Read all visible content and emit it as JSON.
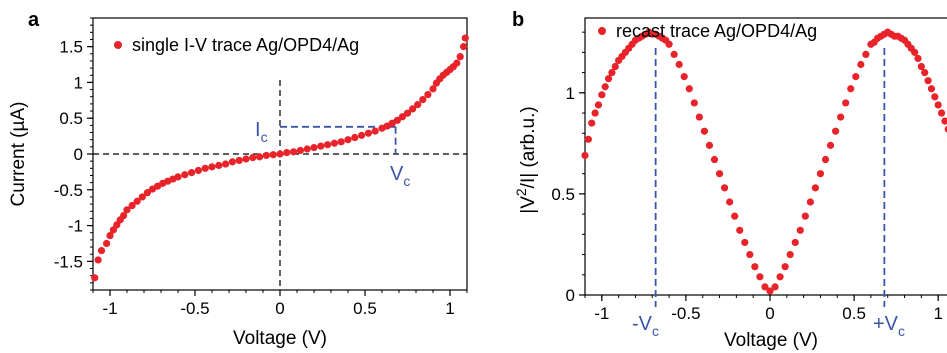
{
  "colors": {
    "point": "#e8232a",
    "annotation": "#3a55a8",
    "axis": "#000000",
    "zero_line": "#000000"
  },
  "panel_a": {
    "letter": "a",
    "annotations": {
      "ic_main": "I",
      "ic_sub": "c",
      "vc_main": "V",
      "vc_sub": "c"
    }
  },
  "panel_b": {
    "letter": "b",
    "annotations": {
      "neg_vc_main": "-V",
      "neg_vc_sub": "c",
      "pos_vc_main": "+V",
      "pos_vc_sub": "c"
    }
  },
  "chart_data": [
    {
      "type": "scatter",
      "panel": "a",
      "xlabel": "Voltage (V)",
      "ylabel": "Current (µA)",
      "xlim": [
        -1.1,
        1.1
      ],
      "ylim": [
        -1.9,
        1.9
      ],
      "x_ticks": [
        -1,
        -0.5,
        0,
        0.5,
        1
      ],
      "x_tick_labels": [
        "-1",
        "-0.5",
        "0",
        "0.5",
        "1"
      ],
      "y_ticks": [
        -1.5,
        -1,
        -0.5,
        0,
        0.5,
        1,
        1.5
      ],
      "y_tick_labels": [
        "-1.5",
        "-1",
        "-0.5",
        "0",
        "0.5",
        "1",
        "1.5"
      ],
      "legend": "top-left",
      "grid": false,
      "series": [
        {
          "name": "single I-V trace Ag/OPD4/Ag",
          "x": [
            -1.09,
            -1.07,
            -1.05,
            -1.02,
            -1.0,
            -0.98,
            -0.96,
            -0.94,
            -0.92,
            -0.9,
            -0.87,
            -0.84,
            -0.81,
            -0.78,
            -0.75,
            -0.72,
            -0.69,
            -0.66,
            -0.63,
            -0.6,
            -0.56,
            -0.52,
            -0.48,
            -0.44,
            -0.4,
            -0.36,
            -0.32,
            -0.28,
            -0.24,
            -0.2,
            -0.16,
            -0.12,
            -0.08,
            -0.04,
            0.0,
            0.04,
            0.08,
            0.12,
            0.16,
            0.2,
            0.24,
            0.28,
            0.32,
            0.36,
            0.4,
            0.44,
            0.48,
            0.52,
            0.56,
            0.6,
            0.63,
            0.66,
            0.69,
            0.72,
            0.75,
            0.78,
            0.81,
            0.84,
            0.87,
            0.9,
            0.92,
            0.94,
            0.96,
            0.98,
            1.0,
            1.02,
            1.04,
            1.06,
            1.08,
            1.09
          ],
          "y": [
            -1.73,
            -1.48,
            -1.35,
            -1.25,
            -1.14,
            -1.06,
            -0.99,
            -0.92,
            -0.86,
            -0.78,
            -0.72,
            -0.66,
            -0.6,
            -0.54,
            -0.49,
            -0.45,
            -0.41,
            -0.38,
            -0.35,
            -0.32,
            -0.29,
            -0.26,
            -0.23,
            -0.2,
            -0.18,
            -0.16,
            -0.14,
            -0.11,
            -0.09,
            -0.07,
            -0.05,
            -0.04,
            -0.02,
            -0.01,
            0.0,
            0.02,
            0.03,
            0.05,
            0.07,
            0.09,
            0.11,
            0.13,
            0.15,
            0.17,
            0.2,
            0.23,
            0.26,
            0.29,
            0.32,
            0.36,
            0.39,
            0.43,
            0.47,
            0.52,
            0.57,
            0.63,
            0.69,
            0.76,
            0.83,
            0.91,
            0.99,
            1.05,
            1.1,
            1.14,
            1.18,
            1.22,
            1.27,
            1.36,
            1.5,
            1.62
          ]
        }
      ],
      "guides": {
        "vc_x": 0.68,
        "ic_y": 0.38
      }
    },
    {
      "type": "scatter",
      "panel": "b",
      "xlabel": "Voltage (V)",
      "ylabel": "|V²/I| (arb.u.)",
      "xlim": [
        -1.1,
        1.1
      ],
      "ylim": [
        0,
        1.37
      ],
      "x_ticks": [
        -1,
        -0.5,
        0,
        0.5,
        1
      ],
      "x_tick_labels": [
        "-1",
        "-0.5",
        "0",
        "0.5",
        "1"
      ],
      "y_ticks": [
        0,
        0.5,
        1
      ],
      "y_tick_labels": [
        "0",
        "0.5",
        "1"
      ],
      "legend": "top-left",
      "grid": false,
      "series": [
        {
          "name": "recast trace Ag/OPD4/Ag",
          "x": [
            -1.1,
            -1.08,
            -1.06,
            -1.04,
            -1.02,
            -1.0,
            -0.98,
            -0.96,
            -0.94,
            -0.92,
            -0.9,
            -0.88,
            -0.86,
            -0.84,
            -0.82,
            -0.8,
            -0.78,
            -0.76,
            -0.74,
            -0.72,
            -0.7,
            -0.68,
            -0.66,
            -0.64,
            -0.62,
            -0.6,
            -0.57,
            -0.54,
            -0.51,
            -0.48,
            -0.45,
            -0.42,
            -0.39,
            -0.36,
            -0.33,
            -0.3,
            -0.27,
            -0.24,
            -0.21,
            -0.18,
            -0.15,
            -0.12,
            -0.09,
            -0.06,
            -0.03,
            0.0,
            0.03,
            0.06,
            0.09,
            0.12,
            0.15,
            0.18,
            0.21,
            0.24,
            0.27,
            0.3,
            0.33,
            0.36,
            0.39,
            0.42,
            0.45,
            0.48,
            0.51,
            0.54,
            0.57,
            0.6,
            0.62,
            0.64,
            0.66,
            0.68,
            0.7,
            0.72,
            0.74,
            0.76,
            0.78,
            0.8,
            0.82,
            0.84,
            0.86,
            0.88,
            0.9,
            0.92,
            0.94,
            0.96,
            0.98,
            1.0,
            1.02,
            1.04,
            1.06,
            1.08,
            1.1
          ],
          "y": [
            0.69,
            0.77,
            0.85,
            0.9,
            0.94,
            0.99,
            1.03,
            1.07,
            1.1,
            1.13,
            1.16,
            1.18,
            1.2,
            1.22,
            1.24,
            1.26,
            1.27,
            1.28,
            1.29,
            1.3,
            1.29,
            1.29,
            1.28,
            1.27,
            1.26,
            1.24,
            1.19,
            1.14,
            1.08,
            1.02,
            0.95,
            0.88,
            0.81,
            0.74,
            0.67,
            0.6,
            0.53,
            0.46,
            0.39,
            0.32,
            0.26,
            0.2,
            0.14,
            0.09,
            0.04,
            0.02,
            0.04,
            0.09,
            0.14,
            0.2,
            0.26,
            0.32,
            0.39,
            0.46,
            0.53,
            0.6,
            0.67,
            0.74,
            0.81,
            0.88,
            0.95,
            1.02,
            1.08,
            1.14,
            1.19,
            1.24,
            1.25,
            1.27,
            1.28,
            1.29,
            1.3,
            1.29,
            1.28,
            1.28,
            1.27,
            1.26,
            1.24,
            1.22,
            1.2,
            1.17,
            1.13,
            1.1,
            1.06,
            1.02,
            0.98,
            0.94,
            0.9,
            0.86,
            0.82,
            0.78,
            0.74
          ]
        }
      ],
      "guides": {
        "neg_vc_x": -0.68,
        "pos_vc_x": 0.68
      }
    }
  ]
}
